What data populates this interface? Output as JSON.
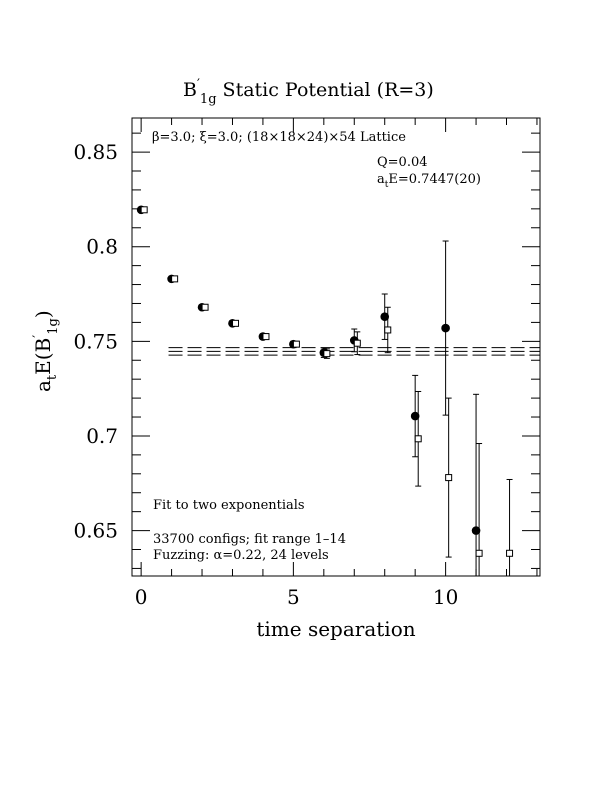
{
  "chart_data": {
    "type": "scatter",
    "title": "B′_1g Static Potential (R=3)",
    "title_parts": {
      "main": "B",
      "prime": "′",
      "sub": "1g",
      "rest": " Static Potential (R=3)"
    },
    "xlabel": "time separation",
    "ylabel": "a_tE(B′_1g)",
    "ylabel_parts": {
      "a": "a",
      "t": "t",
      "E": "E(B",
      "prime": "′",
      "sub": "1g",
      "close": ")"
    },
    "xlim": [
      -0.3,
      13.1
    ],
    "ylim": [
      0.626,
      0.868
    ],
    "x_ticks": [
      0,
      5,
      10
    ],
    "x_tick_labels": [
      "0",
      "5",
      "10"
    ],
    "y_ticks": [
      0.65,
      0.7,
      0.75,
      0.8,
      0.85
    ],
    "y_tick_labels": [
      "0.65",
      "0.7",
      "0.75",
      "0.8",
      "0.85"
    ],
    "grid": false,
    "annotations": {
      "lattice": "β=3.0; ξ=3.0; (18×18×24)×54 Lattice",
      "q": "Q=0.04",
      "energy": "a_tE=0.7447(20)",
      "energy_parts": {
        "a": "a",
        "t": "t",
        "rest": "E=0.7447(20)"
      },
      "fit_desc": "Fit to two exponentials",
      "configs": "33700 configs; fit range 1–14",
      "fuzzing": "Fuzzing: α=0.22, 24 levels"
    },
    "fit_band": {
      "center": 0.7447,
      "lower": 0.7427,
      "upper": 0.7467,
      "x_start": 0.9
    },
    "series": [
      {
        "marker": "filled-circle",
        "x": [
          0,
          1,
          2,
          3,
          4,
          5,
          6,
          7,
          8,
          9,
          10,
          11
        ],
        "y": [
          0.8195,
          0.783,
          0.768,
          0.7595,
          0.7525,
          0.7485,
          0.744,
          0.7505,
          0.763,
          0.7105,
          0.757,
          0.65
        ],
        "err": [
          0.0008,
          0.0008,
          0.001,
          0.0012,
          0.0015,
          0.0015,
          0.0025,
          0.006,
          0.012,
          0.0215,
          0.046,
          0.072
        ]
      },
      {
        "marker": "open-square",
        "x": [
          0.1,
          1.1,
          2.1,
          3.1,
          4.1,
          5.1,
          6.1,
          7.1,
          8.1,
          9.1,
          10.1,
          11.1,
          12.1
        ],
        "y": [
          0.8195,
          0.783,
          0.768,
          0.7595,
          0.7525,
          0.7485,
          0.7435,
          0.749,
          0.756,
          0.6985,
          0.678,
          0.638,
          0.638
        ],
        "err": [
          0.0008,
          0.0008,
          0.001,
          0.0012,
          0.0015,
          0.0015,
          0.0025,
          0.006,
          0.012,
          0.025,
          0.042,
          0.058,
          0.039
        ]
      }
    ]
  }
}
